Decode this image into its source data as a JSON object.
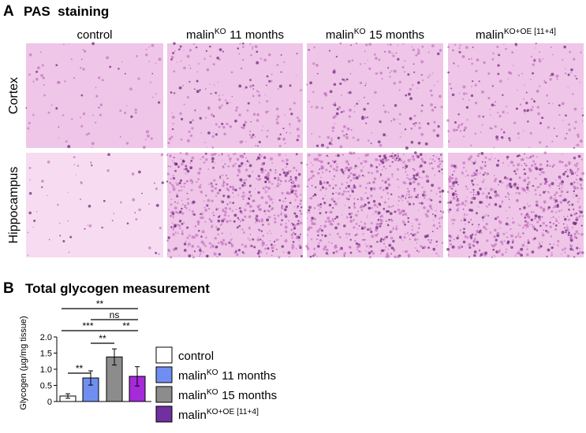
{
  "panel_a": {
    "letter": "A",
    "title": "PAS  staining",
    "columns": [
      {
        "base": "control"
      },
      {
        "base": "malin",
        "sup": "KO",
        "rest": "11 months"
      },
      {
        "base": "malin",
        "sup": "KO",
        "rest": "15 months"
      },
      {
        "base": "malin",
        "sup": "KO+OE [11+4]"
      }
    ],
    "rows": [
      "Cortex",
      "Hippocampus"
    ]
  },
  "chart_data": {
    "type": "bar",
    "letter": "B",
    "title": "Total glycogen measurement",
    "ylabel": "Glycogen (µg/mg tissue)",
    "values": [
      0.17,
      0.73,
      1.38,
      0.78
    ],
    "errors": [
      0.07,
      0.22,
      0.25,
      0.3
    ],
    "colors": [
      "#ffffff",
      "#6f8ef0",
      "#8c8c8c",
      "#a52bd8"
    ],
    "legend": [
      {
        "base": "control"
      },
      {
        "base": "malin",
        "sup": "KO",
        "rest": "11 months"
      },
      {
        "base": "malin",
        "sup": "KO",
        "rest": "15 months"
      },
      {
        "base": "malin",
        "sup": "KO+OE [11+4]"
      }
    ],
    "ylim": [
      0,
      2.0
    ],
    "yticks": [
      0,
      0.5,
      {
        "value": 1.0,
        "label": "1.0"
      },
      1.5,
      {
        "value": 2.0,
        "label": "2.0"
      }
    ],
    "significance": [
      "**",
      "ns",
      "***",
      "**",
      "**",
      "**"
    ]
  }
}
